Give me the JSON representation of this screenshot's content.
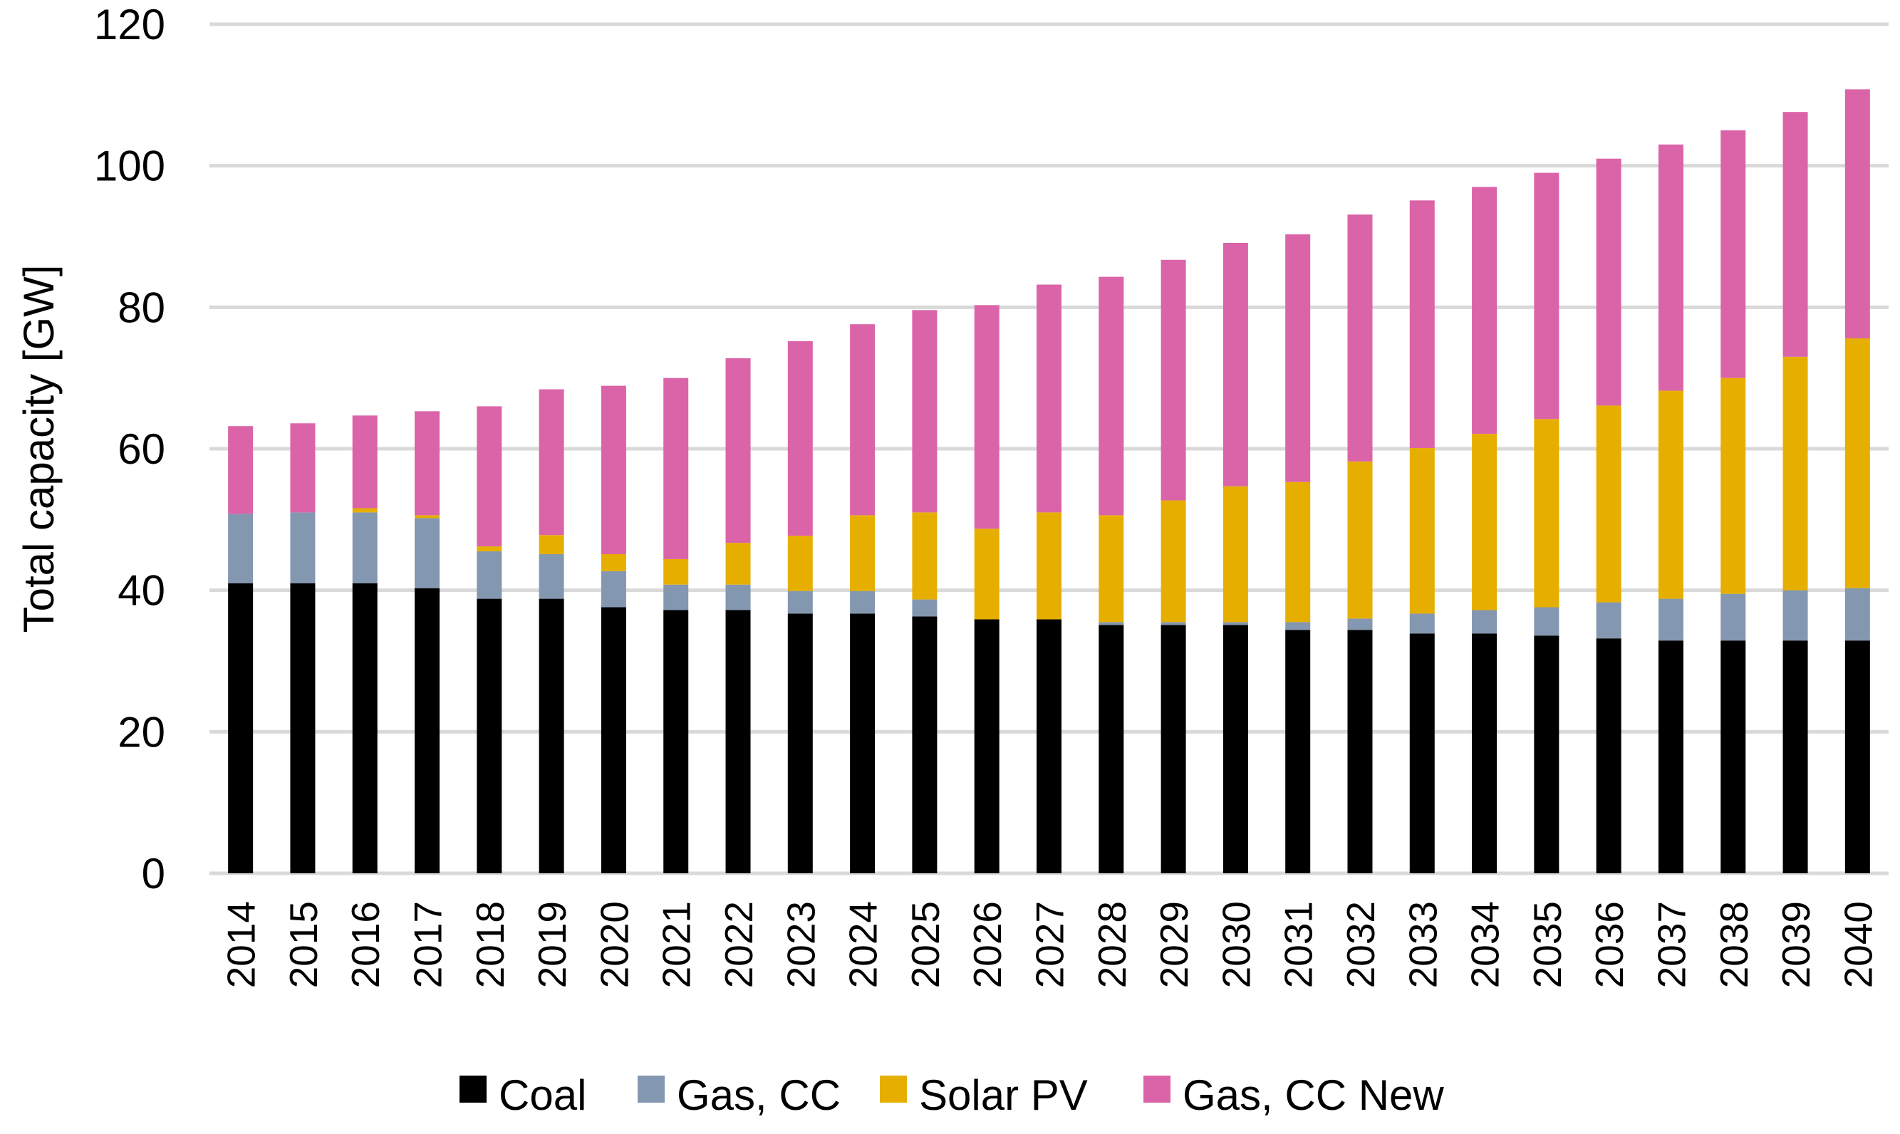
{
  "chart_data": {
    "type": "bar",
    "stacked": true,
    "title": "",
    "xlabel": "",
    "ylabel": "Total capacity [GW]",
    "ylim": [
      0,
      120
    ],
    "yticks": [
      "0",
      "20",
      "40",
      "60",
      "80",
      "100",
      "120"
    ],
    "grid": true,
    "legend_position": "bottom",
    "categories": [
      "2014",
      "2015",
      "2016",
      "2017",
      "2018",
      "2019",
      "2020",
      "2021",
      "2022",
      "2023",
      "2024",
      "2025",
      "2026",
      "2027",
      "2028",
      "2029",
      "2030",
      "2031",
      "2032",
      "2033",
      "2034",
      "2035",
      "2036",
      "2037",
      "2038",
      "2039",
      "2040"
    ],
    "series": [
      {
        "name": "Coal",
        "color": "#000000",
        "values": [
          41,
          41,
          41,
          40.3,
          38.8,
          38.8,
          37.6,
          37.2,
          37.2,
          36.7,
          36.7,
          36.3,
          35.9,
          35.9,
          35.1,
          35.1,
          35.1,
          34.4,
          34.4,
          33.9,
          33.9,
          33.6,
          33.2,
          32.9,
          32.9,
          32.9,
          32.9
        ]
      },
      {
        "name": "Gas, CC",
        "color": "#8497B0",
        "values": [
          9.8,
          10,
          10,
          9.9,
          6.7,
          6.3,
          5.1,
          3.6,
          3.6,
          3.2,
          3.2,
          2.4,
          0,
          0,
          0.4,
          0.4,
          0.4,
          1.1,
          1.6,
          2.8,
          3.3,
          4,
          5.1,
          5.9,
          6.6,
          7.1,
          7.4
        ]
      },
      {
        "name": "Solar PV",
        "color": "#E6AF00",
        "values": [
          0,
          0,
          0.6,
          0.4,
          0.7,
          2.7,
          2.4,
          3.6,
          5.9,
          7.8,
          10.7,
          12.3,
          12.8,
          15.1,
          15.1,
          17.2,
          19.2,
          19.8,
          22.2,
          23.4,
          24.9,
          26.6,
          27.8,
          29.4,
          30.5,
          33,
          35.3
        ]
      },
      {
        "name": "Gas, CC New",
        "color": "#DB64A8",
        "values": [
          12.4,
          12.6,
          13.1,
          14.7,
          19.8,
          20.6,
          23.8,
          25.6,
          26.1,
          27.5,
          27,
          28.6,
          31.6,
          32.2,
          33.7,
          34,
          34.4,
          35,
          34.9,
          35,
          34.9,
          34.8,
          34.9,
          34.8,
          35,
          34.6,
          35.2
        ]
      }
    ]
  }
}
